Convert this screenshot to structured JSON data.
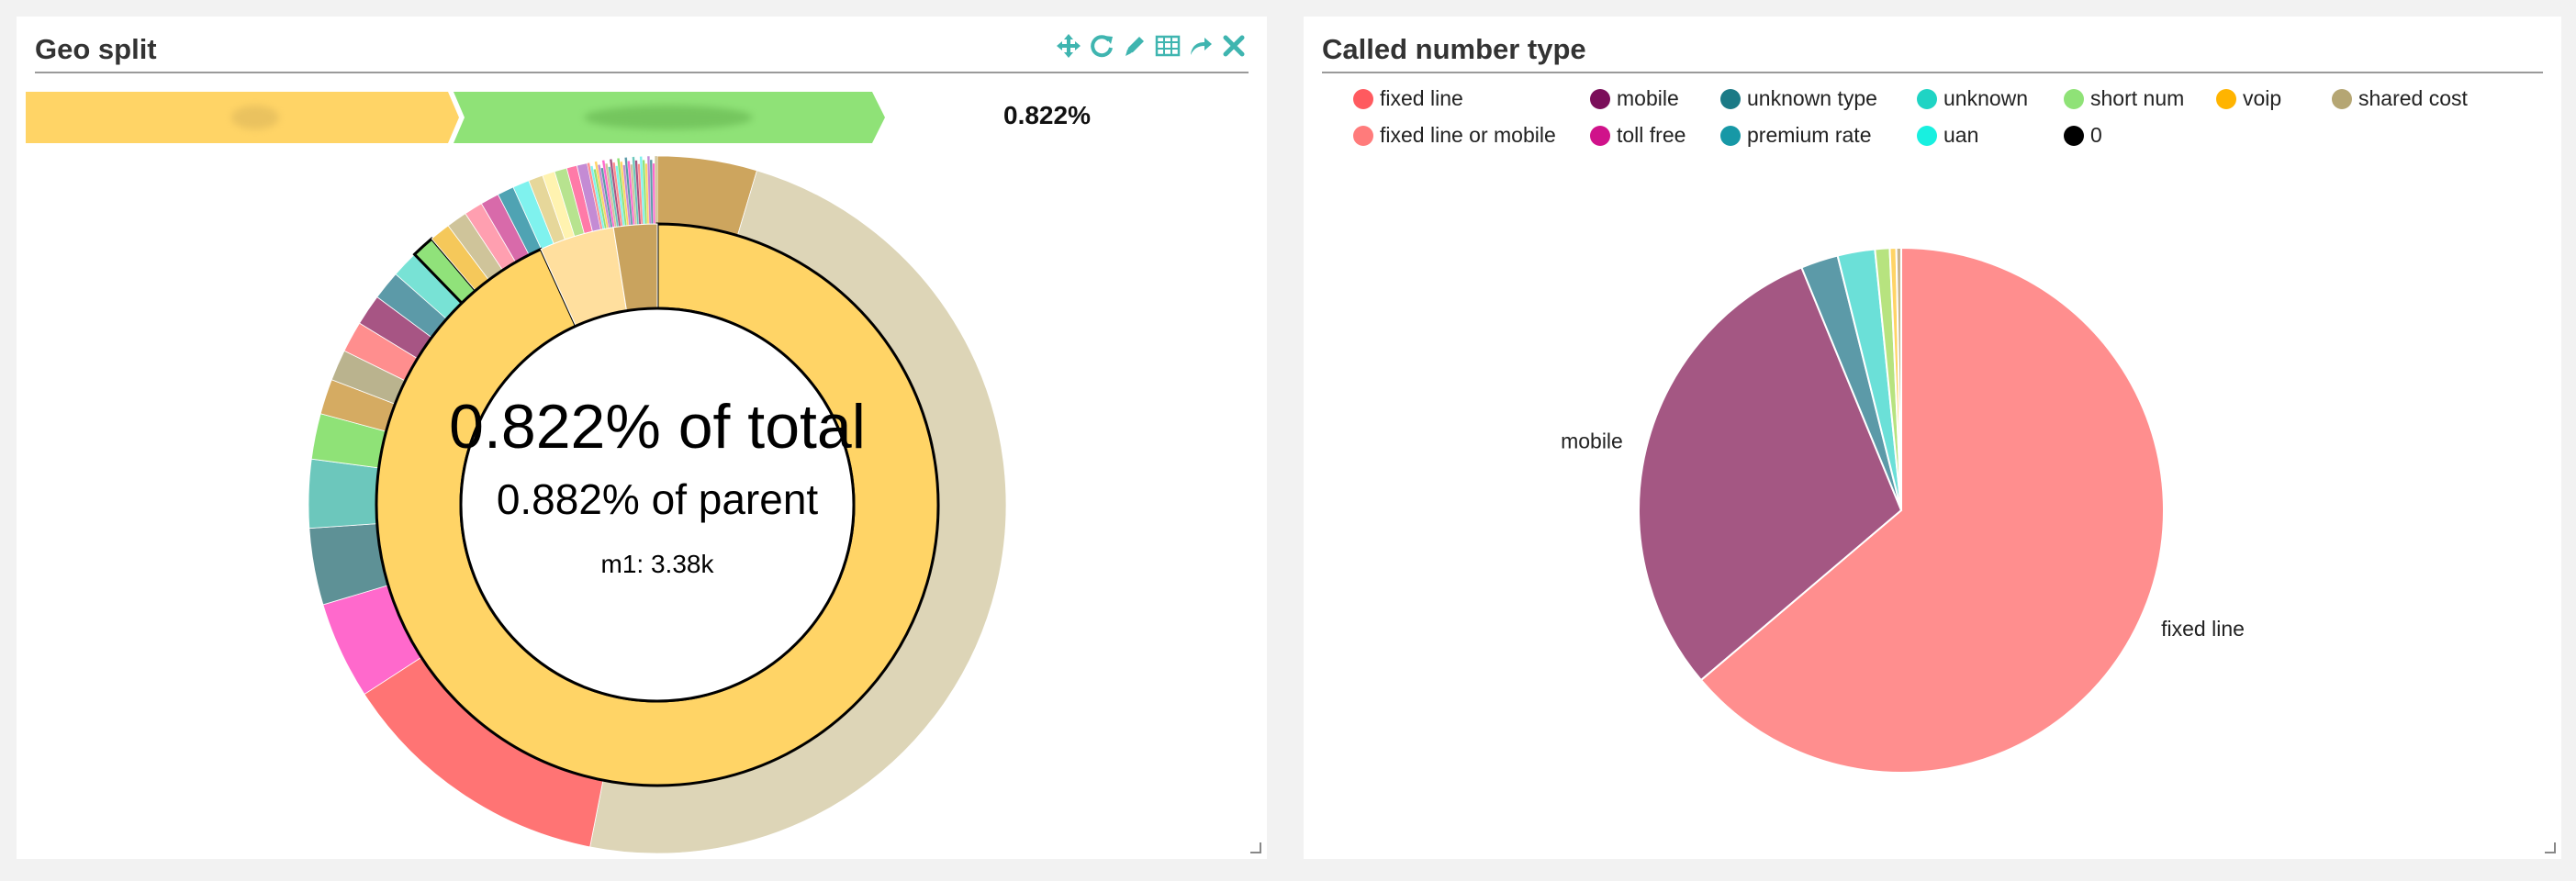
{
  "left_panel": {
    "title": "Geo split",
    "toolbar": [
      {
        "name": "move-icon"
      },
      {
        "name": "refresh-icon"
      },
      {
        "name": "edit-icon"
      },
      {
        "name": "table-icon"
      },
      {
        "name": "share-icon"
      },
      {
        "name": "close-icon"
      }
    ],
    "breadcrumb": {
      "segments": [
        {
          "label": "",
          "color": "#ffd466"
        },
        {
          "label": "",
          "color": "#8fe277"
        }
      ],
      "percentage": "0.822%"
    },
    "center": {
      "line1": "0.822% of total",
      "line2": "0.882% of parent",
      "line3": "m1: 3.38k"
    }
  },
  "right_panel": {
    "title": "Called number type"
  },
  "chart_data": [
    {
      "type": "sunburst",
      "title": "Geo split",
      "inner_ring": [
        {
          "value": 93.2,
          "color": "#ffd466",
          "selected": true
        },
        {
          "value": 4.3,
          "color": "#ffdf9e"
        },
        {
          "value": 2.5,
          "color": "#c9a35e"
        }
      ],
      "outer_ring_selected_children": [
        {
          "value": 4.8,
          "color": "#cda55e"
        },
        {
          "value": 50.5,
          "color": "#ddd5b7"
        },
        {
          "value": 13.3,
          "color": "#ff7474"
        },
        {
          "value": 4.7,
          "color": "#ff69cc"
        },
        {
          "value": 3.7,
          "color": "#5e9196"
        },
        {
          "value": 3.3,
          "color": "#6cc7bc"
        },
        {
          "value": 2.2,
          "color": "#8fe277"
        },
        {
          "value": 1.7,
          "color": "#d5ab62"
        },
        {
          "value": 1.5,
          "color": "#bab38e"
        },
        {
          "value": 1.5,
          "color": "#ff8e8e"
        },
        {
          "value": 1.5,
          "color": "#a75584"
        },
        {
          "value": 1.4,
          "color": "#5c9aa8"
        },
        {
          "value": 1.3,
          "color": "#78e2d5"
        },
        {
          "value": 1.1,
          "color": "#90e27a",
          "highlighted": true
        },
        {
          "value": 1.0,
          "color": "#f5c85a"
        },
        {
          "value": 1.0,
          "color": "#cfc49a"
        },
        {
          "value": 0.9,
          "color": "#ff9fb0"
        },
        {
          "value": 0.9,
          "color": "#d86aaa"
        },
        {
          "value": 0.8,
          "color": "#4fa3b3"
        },
        {
          "value": 0.8,
          "color": "#7ff2ee"
        },
        {
          "value": 0.7,
          "color": "#e6d79a"
        },
        {
          "value": 0.6,
          "color": "#fff3b0"
        },
        {
          "value": 0.6,
          "color": "#b7e38f"
        },
        {
          "value": 0.5,
          "color": "#ff7aa8"
        },
        {
          "value": 0.5,
          "color": "#c48bd4"
        }
      ],
      "outer_ring_small_slices_count": 28
    },
    {
      "type": "pie",
      "title": "Called number type",
      "legend": [
        {
          "name": "fixed line",
          "color": "#ff5a5f"
        },
        {
          "name": "mobile",
          "color": "#7b0e5a"
        },
        {
          "name": "unknown type",
          "color": "#1b7a86"
        },
        {
          "name": "unknown",
          "color": "#1fd4c4"
        },
        {
          "name": "short num",
          "color": "#8fe277"
        },
        {
          "name": "voip",
          "color": "#ffb400"
        },
        {
          "name": "shared cost",
          "color": "#b5a673"
        },
        {
          "name": "fixed line or mobile",
          "color": "#ff7b7b"
        },
        {
          "name": "toll free",
          "color": "#d0128a"
        },
        {
          "name": "premium rate",
          "color": "#1798a6"
        },
        {
          "name": "uan",
          "color": "#18f0e0"
        },
        {
          "name": "0",
          "color": "#000000"
        }
      ],
      "slices": [
        {
          "name": "fixed line",
          "value": 63.8,
          "color": "#ff8e8e"
        },
        {
          "name": "mobile",
          "value": 30.0,
          "color": "#a45783"
        },
        {
          "name": "unknown type",
          "value": 2.3,
          "color": "#5c9aa8"
        },
        {
          "name": "unknown",
          "value": 2.3,
          "color": "#6be0d8"
        },
        {
          "name": "short num",
          "value": 0.9,
          "color": "#b7e37f"
        },
        {
          "name": "voip",
          "value": 0.4,
          "color": "#ffd466"
        },
        {
          "name": "shared cost",
          "value": 0.3,
          "color": "#c9b68e"
        }
      ],
      "slice_labels": [
        "mobile",
        "fixed line"
      ]
    }
  ]
}
